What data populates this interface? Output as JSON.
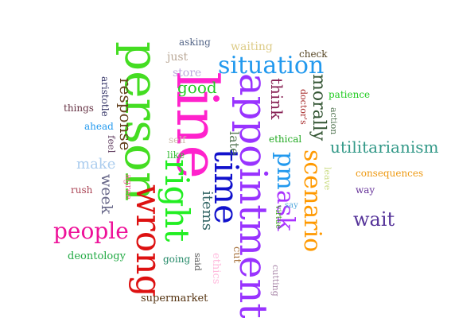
{
  "words": [
    {
      "text": "person",
      "color": "#44dd22"
    },
    {
      "text": "line",
      "color": "#ff22cc"
    },
    {
      "text": "appointment",
      "color": "#9933ff"
    },
    {
      "text": "wrong",
      "color": "#dd1111"
    },
    {
      "text": "right",
      "color": "#22ee22"
    },
    {
      "text": "time",
      "color": "#1111cc"
    },
    {
      "text": "situation",
      "color": "#2299ee"
    },
    {
      "text": "scenario",
      "color": "#ff9900"
    },
    {
      "text": "people",
      "color": "#ee1199"
    },
    {
      "text": "ask",
      "color": "#aa33ff"
    },
    {
      "text": "pm",
      "color": "#2299ee"
    },
    {
      "text": "wait",
      "color": "#553399"
    },
    {
      "text": "morally",
      "color": "#335533"
    },
    {
      "text": "utilitarianism",
      "color": "#339988"
    },
    {
      "text": "think",
      "color": "#882255"
    },
    {
      "text": "response",
      "color": "#664422"
    },
    {
      "text": "good",
      "color": "#22cc22"
    },
    {
      "text": "week",
      "color": "#666688"
    },
    {
      "text": "items",
      "color": "#336666"
    },
    {
      "text": "late",
      "color": "#557755"
    },
    {
      "text": "make",
      "color": "#aaccee"
    },
    {
      "text": "store",
      "color": "#bbaadd"
    },
    {
      "text": "waiting",
      "color": "#ddcc88"
    },
    {
      "text": "just",
      "color": "#bbaa99"
    },
    {
      "text": "deontology",
      "color": "#22aa44"
    },
    {
      "text": "supermarket",
      "color": "#553311"
    },
    {
      "text": "consequences",
      "color": "#ee9911"
    },
    {
      "text": "ethics",
      "color": "#ffbbdd"
    },
    {
      "text": "cut",
      "color": "#aa7744"
    },
    {
      "text": "going",
      "color": "#228866"
    },
    {
      "text": "patience",
      "color": "#22cc22"
    },
    {
      "text": "asking",
      "color": "#556688"
    },
    {
      "text": "check",
      "color": "#554422"
    },
    {
      "text": "ethical",
      "color": "#22aa22"
    },
    {
      "text": "aristotle",
      "color": "#333366"
    },
    {
      "text": "things",
      "color": "#663344"
    },
    {
      "text": "ahead",
      "color": "#2299ee"
    },
    {
      "text": "feel",
      "color": "#664466"
    },
    {
      "text": "self",
      "color": "#ccbbaa"
    },
    {
      "text": "like",
      "color": "#33bb33"
    },
    {
      "text": "rush",
      "color": "#aa4455"
    },
    {
      "text": "agree",
      "color": "#ee6699"
    },
    {
      "text": "said",
      "color": "#555555"
    },
    {
      "text": "way",
      "color": "#663399"
    },
    {
      "text": "leave",
      "color": "#ccdd88"
    },
    {
      "text": "virtue",
      "color": "#44aa22"
    },
    {
      "text": "say",
      "color": "#55aadd"
    },
    {
      "text": "cutting",
      "color": "#aa88aa"
    },
    {
      "text": "doctor's",
      "color": "#aa3333"
    },
    {
      "text": "action",
      "color": "#557755"
    }
  ]
}
